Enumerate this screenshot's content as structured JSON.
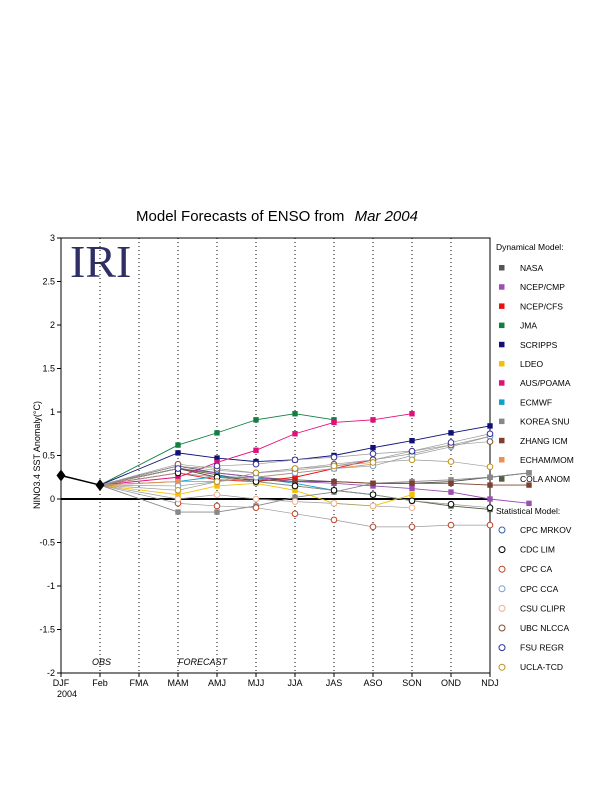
{
  "chart_data": {
    "type": "line",
    "title": "Model Forecasts of ENSO from",
    "title_italic": "Mar 2004",
    "ylabel": "NINO3.4 SST Anomaly(°C)",
    "logo": "IRI",
    "categories": [
      "DJF",
      "Feb",
      "FMA",
      "MAM",
      "AMJ",
      "MJJ",
      "JJA",
      "JAS",
      "ASO",
      "SON",
      "OND",
      "NDJ"
    ],
    "year_label": "2004",
    "ylim": [
      -2,
      3
    ],
    "yticks": [
      -2,
      -1.5,
      -1,
      -0.5,
      0,
      0.5,
      1,
      1.5,
      2,
      2.5,
      3
    ],
    "ytick_labels": [
      "-2",
      "-1.5",
      "-1",
      "-0.5",
      "0",
      "0.5",
      "1",
      "1.5",
      "2",
      "2.5",
      "3"
    ],
    "annotations": {
      "obs": "OBS",
      "forecast": "FORECAST"
    },
    "grid": "vertical dotted",
    "legend_headers": {
      "dynamical": "Dynamical Model:",
      "statistical": "Statistical Model:"
    },
    "observed": {
      "x": [
        0,
        1
      ],
      "values": [
        0.27,
        0.16
      ],
      "color": "#000000"
    },
    "dynamical": [
      {
        "name": "NASA",
        "color": "#555555",
        "values": [
          0.38,
          0.3,
          0.25,
          0.22,
          0.2,
          0.18,
          0.18,
          0.2,
          0.25,
          0.3
        ]
      },
      {
        "name": "NCEP/CMP",
        "color": "#9b4fb3",
        "values": [
          0.35,
          0.3,
          0.25,
          0.2,
          0.18,
          0.15,
          0.12,
          0.08,
          0.0,
          -0.05
        ]
      },
      {
        "name": "NCEP/CFS",
        "color": "#e81010",
        "values": [
          0.3,
          0.22,
          0.2,
          0.25,
          0.35,
          0.45,
          null,
          null,
          null,
          null
        ]
      },
      {
        "name": "JMA",
        "color": "#108040",
        "values": [
          0.62,
          0.76,
          0.91,
          0.98,
          0.91,
          null,
          null,
          null,
          null,
          null
        ]
      },
      {
        "name": "SCRIPPS",
        "color": "#10107a",
        "values": [
          0.53,
          0.47,
          0.43,
          0.45,
          0.5,
          0.59,
          0.67,
          0.76,
          0.84,
          null
        ]
      },
      {
        "name": "LDEO",
        "color": "#f5c000",
        "values": [
          0.05,
          0.15,
          0.18,
          0.1,
          -0.05,
          -0.08,
          0.05,
          null,
          null,
          null
        ]
      },
      {
        "name": "AUS/POAMA",
        "color": "#e0107a",
        "values": [
          0.25,
          0.42,
          0.56,
          0.75,
          0.88,
          0.91,
          0.98,
          null,
          null,
          null
        ]
      },
      {
        "name": "ECMWF",
        "color": "#10a0d0",
        "values": [
          0.2,
          0.26,
          0.24,
          0.18,
          0.1,
          0.05,
          null,
          null,
          null,
          null
        ]
      },
      {
        "name": "KOREA SNU",
        "color": "#888888",
        "values": [
          -0.15,
          -0.15,
          -0.08,
          0.02,
          0.08,
          0.18,
          0.2,
          0.22,
          0.25,
          0.3
        ]
      },
      {
        "name": "ZHANG ICM",
        "color": "#804030",
        "values": [
          0.35,
          0.25,
          0.22,
          0.2,
          0.2,
          0.18,
          0.18,
          0.18,
          0.16,
          0.16
        ]
      },
      {
        "name": "ECHAM/MOM",
        "color": "#f09050",
        "values": [
          0.2,
          0.2,
          0.25,
          0.3,
          0.35,
          0.4,
          null,
          null,
          null,
          null
        ]
      },
      {
        "name": "COLA ANOM",
        "color": "#506040",
        "values": [
          0.35,
          0.28,
          0.2,
          0.15,
          0.1,
          0.05,
          -0.02,
          -0.08,
          -0.12,
          null
        ]
      }
    ],
    "statistical": [
      {
        "name": "CPC MRKOV",
        "color": "#3060b0",
        "values": [
          0.38,
          0.33,
          0.3,
          0.33,
          0.38,
          0.45,
          0.52,
          0.62,
          0.72,
          null
        ]
      },
      {
        "name": "CDC LIM",
        "color": "#000000",
        "values": [
          0.3,
          0.25,
          0.2,
          0.15,
          0.1,
          0.05,
          -0.02,
          -0.06,
          -0.1,
          null
        ]
      },
      {
        "name": "CPC CA",
        "color": "#c04020",
        "values": [
          -0.05,
          -0.08,
          -0.1,
          -0.17,
          -0.24,
          -0.32,
          -0.32,
          -0.3,
          -0.3,
          null
        ]
      },
      {
        "name": "CPC CCA",
        "color": "#70a0d0",
        "values": [
          0.15,
          0.2,
          0.25,
          0.3,
          0.35,
          0.38,
          0.5,
          0.6,
          0.72,
          null
        ]
      },
      {
        "name": "CSU CLIPR",
        "color": "#f0b090",
        "values": [
          0.0,
          0.05,
          0.0,
          -0.03,
          -0.05,
          -0.08,
          -0.1,
          null,
          null,
          null
        ]
      },
      {
        "name": "UBC NLCCA",
        "color": "#805030",
        "values": [
          0.4,
          0.35,
          0.3,
          0.35,
          0.4,
          0.45,
          0.55,
          0.62,
          0.66,
          null
        ]
      },
      {
        "name": "FSU REGR",
        "color": "#3030a0",
        "values": [
          0.35,
          0.38,
          0.4,
          0.45,
          0.48,
          0.52,
          0.55,
          0.65,
          0.75,
          null
        ]
      },
      {
        "name": "UCLA-TCD",
        "color": "#c09010",
        "values": [
          0.1,
          0.2,
          0.3,
          0.35,
          0.38,
          0.42,
          0.45,
          0.43,
          0.37,
          null
        ]
      }
    ]
  }
}
